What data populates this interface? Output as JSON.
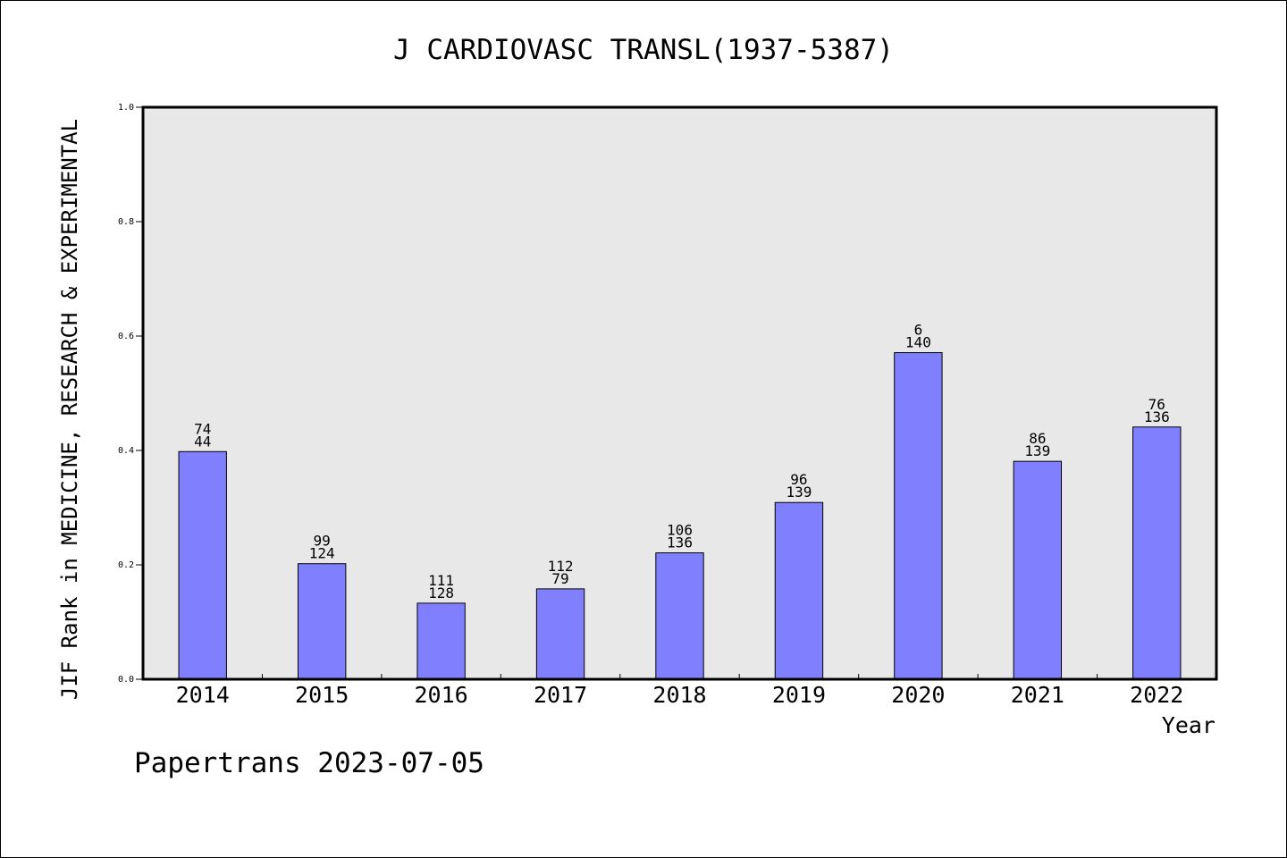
{
  "chart_data": {
    "type": "bar",
    "title": "J CARDIOVASC TRANSL(1937-5387)",
    "xlabel": "Year",
    "ylabel": "JIF Rank in MEDICINE, RESEARCH & EXPERIMENTAL",
    "ylim": [
      0,
      1.0
    ],
    "yticks": [
      "0.0",
      "0.2",
      "0.4",
      "0.6",
      "0.8",
      "1.0"
    ],
    "grid": false,
    "categories": [
      "2014",
      "2015",
      "2016",
      "2017",
      "2018",
      "2019",
      "2020",
      "2021",
      "2022"
    ],
    "values": [
      0.398,
      0.202,
      0.133,
      0.158,
      0.221,
      0.309,
      0.571,
      0.381,
      0.441
    ],
    "labels": [
      {
        "rank": "74",
        "total": "44"
      },
      {
        "rank": "99",
        "total": "124"
      },
      {
        "rank": "111",
        "total": "128"
      },
      {
        "rank": "112",
        "total": "79"
      },
      {
        "rank": "106",
        "total": "136"
      },
      {
        "rank": "96",
        "total": "139"
      },
      {
        "rank": "6",
        "total": "140"
      },
      {
        "rank": "86",
        "total": "139"
      },
      {
        "rank": "76",
        "total": "136"
      }
    ],
    "colors": {
      "bar": "#8080ff",
      "plot_bg": "#e8e8e8",
      "axis": "#000000"
    }
  },
  "footer": "Papertrans 2023-07-05"
}
